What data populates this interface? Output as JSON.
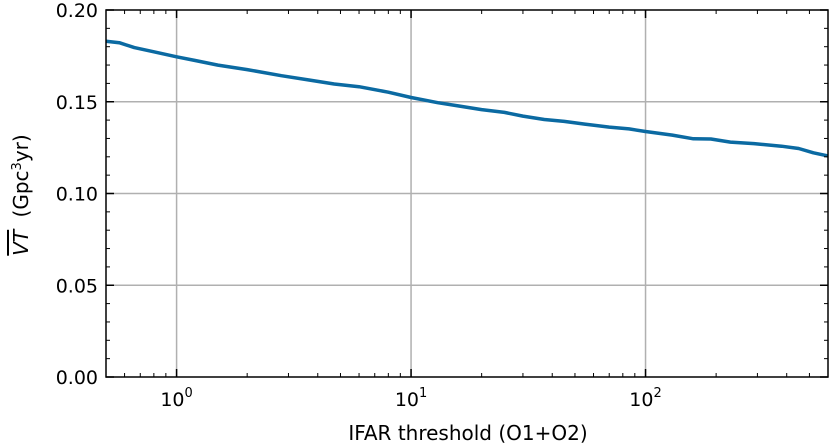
{
  "chart_data": {
    "type": "line",
    "xscale": "log",
    "xlim": [
      0.5,
      600
    ],
    "ylim": [
      0.0,
      0.2
    ],
    "grid": true,
    "xlabel": "IFAR threshold (O1+O2)",
    "ylabel": {
      "symbol": "VT",
      "unit_prefix": "(Gpc",
      "unit_sup": "3",
      "unit_suffix": "yr)"
    },
    "x_ticks": [
      {
        "value": 1,
        "base": "10",
        "exp": "0"
      },
      {
        "value": 10,
        "base": "10",
        "exp": "1"
      },
      {
        "value": 100,
        "base": "10",
        "exp": "2"
      }
    ],
    "y_ticks": [
      {
        "value": 0.0,
        "label": "0.00"
      },
      {
        "value": 0.05,
        "label": "0.05"
      },
      {
        "value": 0.1,
        "label": "0.10"
      },
      {
        "value": 0.15,
        "label": "0.15"
      },
      {
        "value": 0.2,
        "label": "0.20"
      }
    ],
    "series": [
      {
        "color": "#0b6aa2",
        "x": [
          0.5,
          0.57,
          0.66,
          0.8,
          1.0,
          1.2,
          1.5,
          2.0,
          2.8,
          3.7,
          4.7,
          6.0,
          8.0,
          10.0,
          13.0,
          16.0,
          20.0,
          25.0,
          30.0,
          37.0,
          45.0,
          55.0,
          70.0,
          85.0,
          100.0,
          130.0,
          160.0,
          190.0,
          230.0,
          290.0,
          380.0,
          450.0,
          520.0,
          600.0
        ],
        "y": [
          0.183,
          0.1822,
          0.1795,
          0.1772,
          0.1745,
          0.1725,
          0.17,
          0.1675,
          0.1642,
          0.1618,
          0.1597,
          0.1582,
          0.1552,
          0.1523,
          0.1495,
          0.1477,
          0.1457,
          0.1442,
          0.1422,
          0.1403,
          0.1393,
          0.1378,
          0.1362,
          0.1352,
          0.1338,
          0.1318,
          0.1298,
          0.1297,
          0.128,
          0.1272,
          0.1258,
          0.1245,
          0.1222,
          0.1205
        ]
      }
    ]
  }
}
